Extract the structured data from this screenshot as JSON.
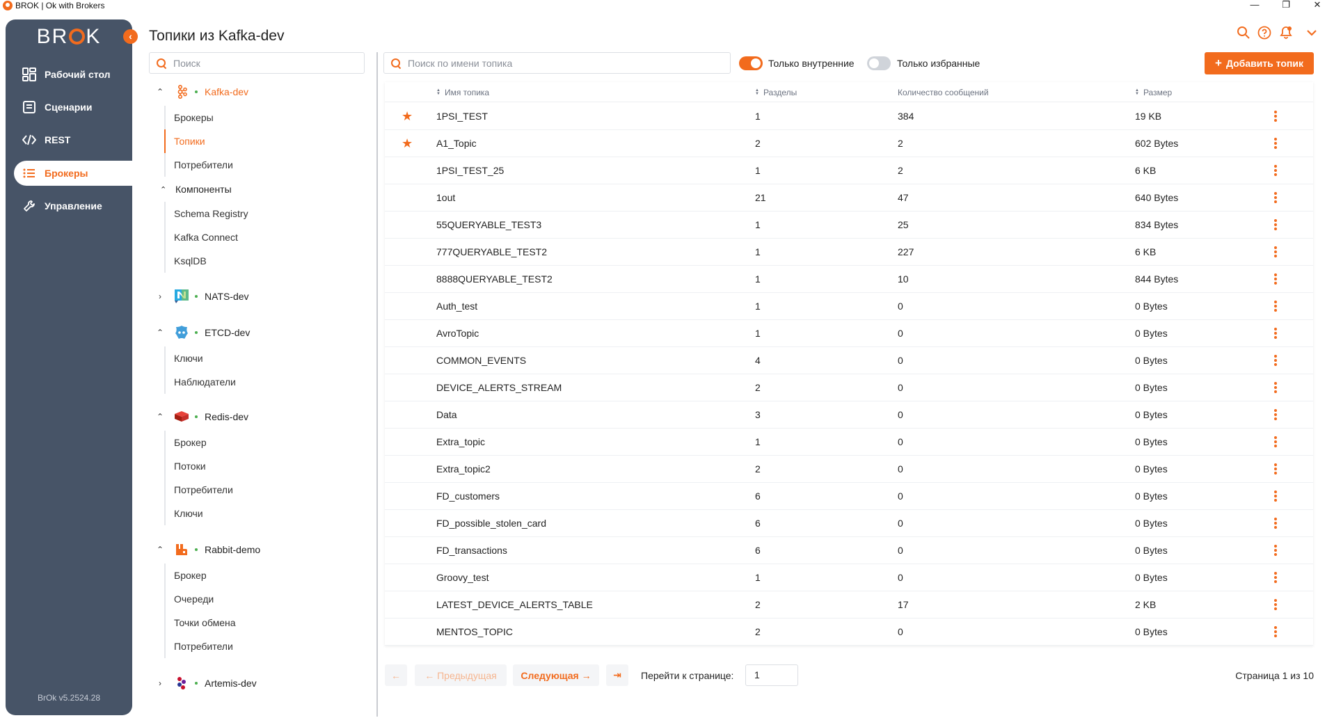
{
  "window": {
    "title": "BROK | Ok with Brokers",
    "controls": [
      "—",
      "❐",
      "✕"
    ]
  },
  "sidebar": {
    "logo": "BROK",
    "items": [
      {
        "label": "Рабочий стол",
        "icon": "dashboard-icon"
      },
      {
        "label": "Сценарии",
        "icon": "scenario-icon"
      },
      {
        "label": "REST",
        "icon": "code-icon"
      },
      {
        "label": "Брокеры",
        "icon": "list-icon",
        "active": true
      },
      {
        "label": "Управление",
        "icon": "wrench-icon"
      }
    ],
    "version": "BrOk v5.2524.28"
  },
  "page_title": "Топики из Kafka-dev",
  "tree": {
    "search_placeholder": "Поиск",
    "brokers": [
      {
        "name": "Kafka-dev",
        "expanded": true,
        "active": true,
        "items": [
          "Брокеры",
          "Топики",
          "Потребители"
        ],
        "group": "Компоненты",
        "group_items": [
          "Schema Registry",
          "Kafka Connect",
          "KsqlDB"
        ]
      },
      {
        "name": "NATS-dev",
        "expanded": false
      },
      {
        "name": "ETCD-dev",
        "expanded": true,
        "items": [
          "Ключи",
          "Наблюдатели"
        ]
      },
      {
        "name": "Redis-dev",
        "expanded": true,
        "items": [
          "Брокер",
          "Потоки",
          "Потребители",
          "Ключи"
        ]
      },
      {
        "name": "Rabbit-demo",
        "expanded": true,
        "items": [
          "Брокер",
          "Очереди",
          "Точки обмена",
          "Потребители"
        ]
      },
      {
        "name": "Artemis-dev",
        "expanded": false
      }
    ]
  },
  "toolbar": {
    "search_placeholder": "Поиск по имени топика",
    "toggle_internal": "Только внутренние",
    "toggle_internal_on": true,
    "toggle_favorites": "Только избранные",
    "toggle_favorites_on": false,
    "add_button": "Добавить топик"
  },
  "table": {
    "columns": [
      "Имя топика",
      "Разделы",
      "Количество сообщений",
      "Размер"
    ],
    "rows": [
      {
        "fav": true,
        "name": "1PSI_TEST",
        "partitions": "1",
        "messages": "384",
        "size": "19 KB"
      },
      {
        "fav": true,
        "name": "A1_Topic",
        "partitions": "2",
        "messages": "2",
        "size": "602 Bytes"
      },
      {
        "fav": false,
        "name": "1PSI_TEST_25",
        "partitions": "1",
        "messages": "2",
        "size": "6 KB"
      },
      {
        "fav": false,
        "name": "1out",
        "partitions": "21",
        "messages": "47",
        "size": "640 Bytes"
      },
      {
        "fav": false,
        "name": "55QUERYABLE_TEST3",
        "partitions": "1",
        "messages": "25",
        "size": "834 Bytes"
      },
      {
        "fav": false,
        "name": "777QUERYABLE_TEST2",
        "partitions": "1",
        "messages": "227",
        "size": "6 KB"
      },
      {
        "fav": false,
        "name": "8888QUERYABLE_TEST2",
        "partitions": "1",
        "messages": "10",
        "size": "844 Bytes"
      },
      {
        "fav": false,
        "name": "Auth_test",
        "partitions": "1",
        "messages": "0",
        "size": "0 Bytes"
      },
      {
        "fav": false,
        "name": "AvroTopic",
        "partitions": "1",
        "messages": "0",
        "size": "0 Bytes"
      },
      {
        "fav": false,
        "name": "COMMON_EVENTS",
        "partitions": "4",
        "messages": "0",
        "size": "0 Bytes"
      },
      {
        "fav": false,
        "name": "DEVICE_ALERTS_STREAM",
        "partitions": "2",
        "messages": "0",
        "size": "0 Bytes"
      },
      {
        "fav": false,
        "name": "Data",
        "partitions": "3",
        "messages": "0",
        "size": "0 Bytes"
      },
      {
        "fav": false,
        "name": "Extra_topic",
        "partitions": "1",
        "messages": "0",
        "size": "0 Bytes"
      },
      {
        "fav": false,
        "name": "Extra_topic2",
        "partitions": "2",
        "messages": "0",
        "size": "0 Bytes"
      },
      {
        "fav": false,
        "name": "FD_customers",
        "partitions": "6",
        "messages": "0",
        "size": "0 Bytes"
      },
      {
        "fav": false,
        "name": "FD_possible_stolen_card",
        "partitions": "6",
        "messages": "0",
        "size": "0 Bytes"
      },
      {
        "fav": false,
        "name": "FD_transactions",
        "partitions": "6",
        "messages": "0",
        "size": "0 Bytes"
      },
      {
        "fav": false,
        "name": "Groovy_test",
        "partitions": "1",
        "messages": "0",
        "size": "0 Bytes"
      },
      {
        "fav": false,
        "name": "LATEST_DEVICE_ALERTS_TABLE",
        "partitions": "2",
        "messages": "17",
        "size": "2 KB"
      },
      {
        "fav": false,
        "name": "MENTOS_TOPIC",
        "partitions": "2",
        "messages": "0",
        "size": "0 Bytes"
      }
    ]
  },
  "pagination": {
    "first": "←",
    "prev": "← Предыдущая",
    "next": "Следующая →",
    "last": "⇥",
    "goto_label": "Перейти к странице:",
    "goto_value": "1",
    "page_info": "Страница 1 из 10"
  },
  "colors": {
    "accent": "#f26b1d",
    "sidebar_bg": "#475467",
    "status_green": "#4caf50"
  }
}
